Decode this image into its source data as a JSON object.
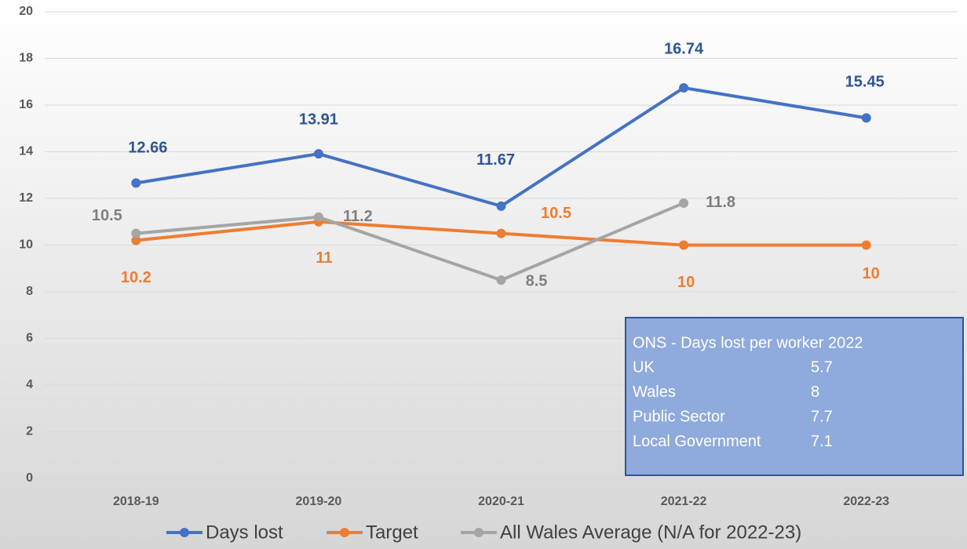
{
  "chart_data": {
    "type": "line",
    "categories": [
      "2018-19",
      "2019-20",
      "2020-21",
      "2021-22",
      "2022-23"
    ],
    "series": [
      {
        "name": "Days lost",
        "color": "#4472c4",
        "label_color": "#2f5597",
        "values": [
          12.66,
          13.91,
          11.67,
          16.74,
          15.45
        ]
      },
      {
        "name": "Target",
        "color": "#ed7d31",
        "label_color": "#ed7d31",
        "values": [
          10.2,
          11,
          10.5,
          10,
          10
        ]
      },
      {
        "name": "All Wales Average (N/A for 2022-23)",
        "color": "#a5a5a5",
        "label_color": "#7f7f7f",
        "values": [
          10.5,
          11.2,
          8.5,
          11.8,
          null
        ]
      }
    ],
    "ylim": [
      0,
      20
    ],
    "yticks": [
      0,
      2,
      4,
      6,
      8,
      10,
      12,
      14,
      16,
      18,
      20
    ],
    "grid": true,
    "legend": "bottom",
    "annotation": {
      "title": "ONS - Days lost per worker 2022",
      "rows": [
        [
          "UK",
          5.7
        ],
        [
          "Wales",
          8
        ],
        [
          "Public Sector",
          7.7
        ],
        [
          "Local Government",
          7.1
        ]
      ]
    }
  }
}
